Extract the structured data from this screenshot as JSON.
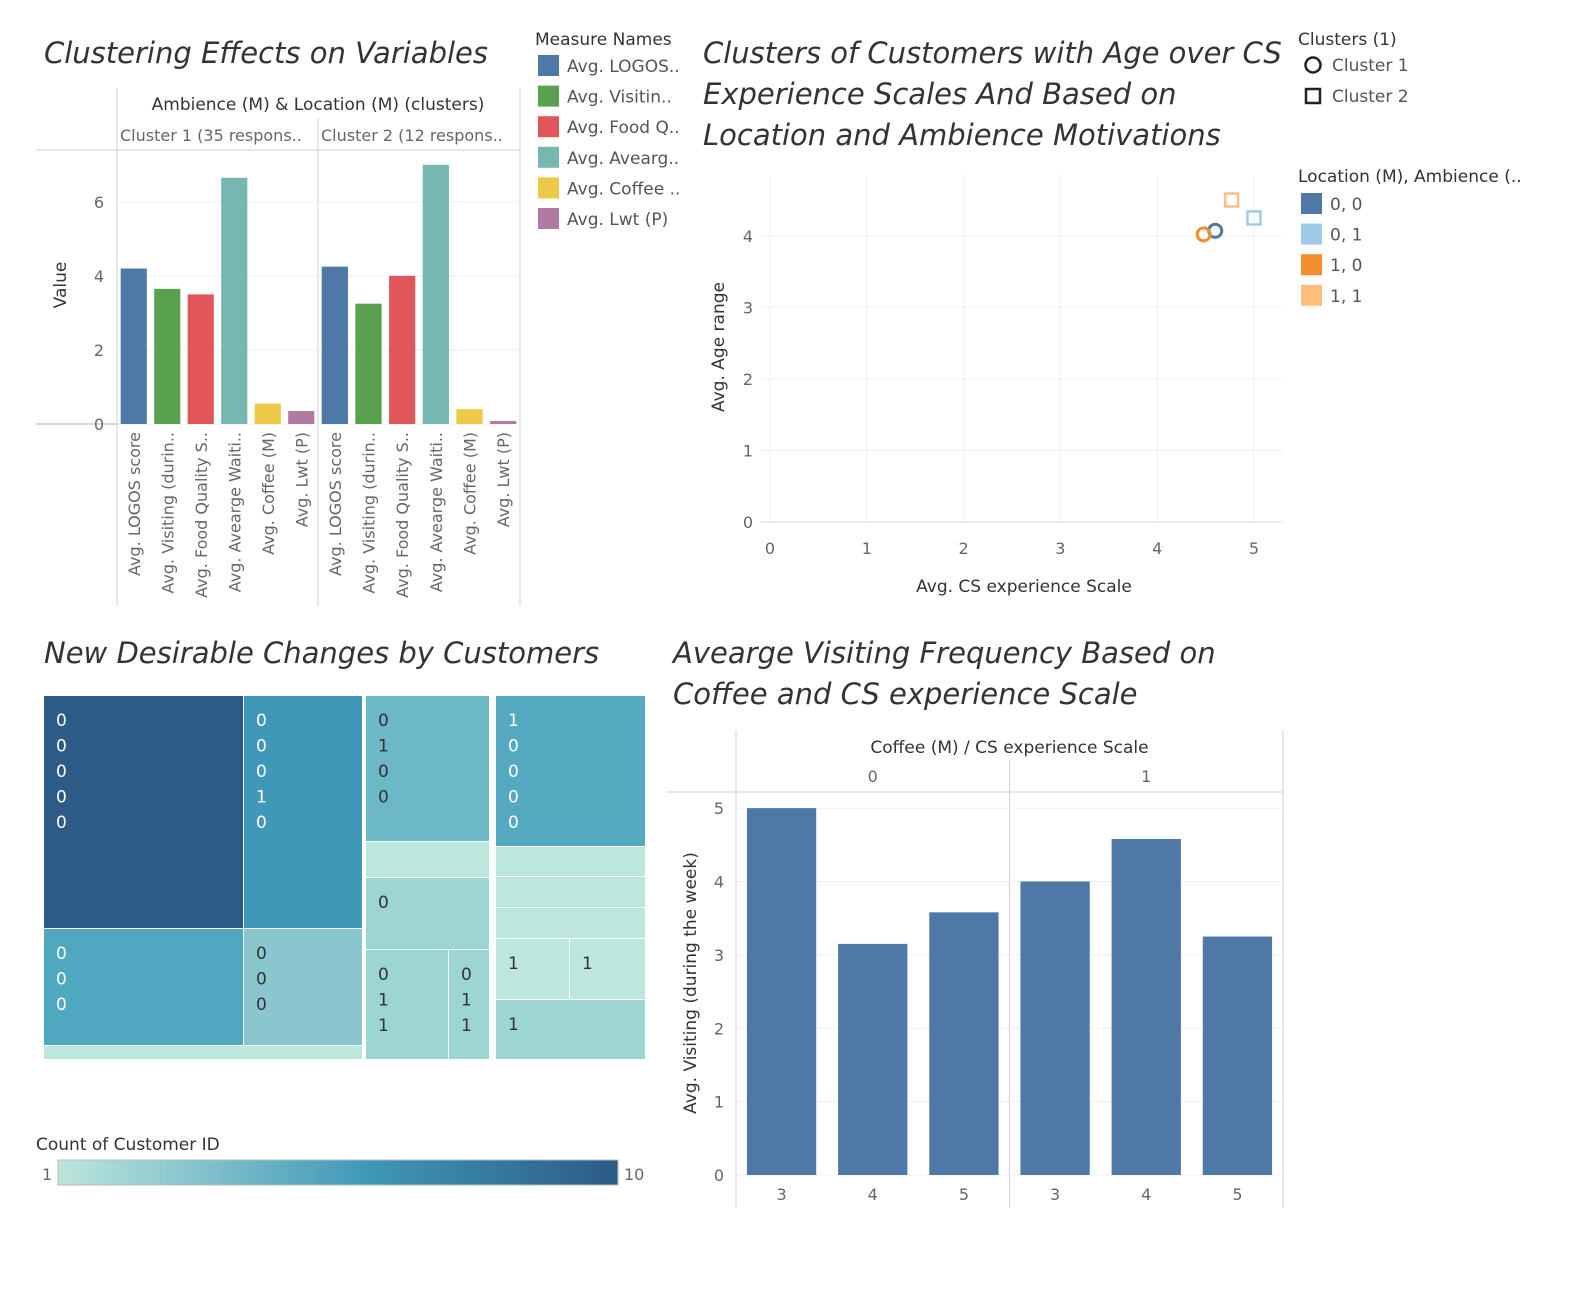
{
  "chart_data": [
    {
      "id": "clustering",
      "type": "bar",
      "title": "Clustering Effects on Variables",
      "header": "Ambience (M) & Location (M) (clusters)",
      "ylabel": "Value",
      "ylim": [
        0,
        7.4
      ],
      "yticks": [
        0,
        2,
        4,
        6
      ],
      "legend_title": "Measure Names",
      "legend": [
        "Avg. LOGOS..",
        "Avg. Visitin..",
        "Avg. Food Q..",
        "Avg. Avearg..",
        "Avg. Coffee ..",
        "Avg. Lwt (P)"
      ],
      "colors": [
        "#4e79a7",
        "#59a14f",
        "#e15759",
        "#76b7b2",
        "#edc948",
        "#b07aa1"
      ],
      "categories": [
        "Avg. LOGOS score",
        "Avg. Visiting (durin..",
        "Avg. Food Quality S..",
        "Avg. Avearge Waiti..",
        "Avg. Coffee (M)",
        "Avg. Lwt (P)"
      ],
      "series": [
        {
          "name": "Cluster 1 (35 respons..",
          "values": [
            4.2,
            3.65,
            3.5,
            6.65,
            0.55,
            0.35
          ]
        },
        {
          "name": "Cluster 2 (12 respons..",
          "values": [
            4.25,
            3.25,
            4.0,
            7.0,
            0.4,
            0.08
          ]
        }
      ],
      "grid": true
    },
    {
      "id": "scatter",
      "type": "scatter",
      "title_lines": [
        "Clusters of Customers with Age over CS",
        "Experience Scales And  Based on",
        "Location and Ambience Motivations"
      ],
      "xlabel": "Avg. CS experience Scale",
      "ylabel": "Avg. Age range",
      "xlim": [
        0,
        5.3
      ],
      "ylim": [
        0,
        4.85
      ],
      "xticks": [
        0,
        1,
        2,
        3,
        4,
        5
      ],
      "yticks": [
        0,
        1,
        2,
        3,
        4
      ],
      "shape_legend_title": "Clusters (1)",
      "shape_legend": [
        {
          "label": "Cluster 1",
          "shape": "circle"
        },
        {
          "label": "Cluster 2",
          "shape": "square"
        }
      ],
      "color_legend_title": "Location (M), Ambience (..",
      "color_legend": [
        {
          "label": "0, 0",
          "color": "#4e79a7"
        },
        {
          "label": "0, 1",
          "color": "#a0cbe8"
        },
        {
          "label": "1, 0",
          "color": "#f28e2b"
        },
        {
          "label": "1, 1",
          "color": "#ffbe7d"
        }
      ],
      "points": [
        {
          "x": 4.6,
          "y": 4.07,
          "shape": "circle",
          "color": "#4e79a7"
        },
        {
          "x": 4.48,
          "y": 4.02,
          "shape": "circle",
          "color": "#f28e2b"
        },
        {
          "x": 4.77,
          "y": 4.5,
          "shape": "square",
          "color": "#ffbe7d"
        },
        {
          "x": 5.0,
          "y": 4.25,
          "shape": "square",
          "color": "#a0cbe8"
        }
      ],
      "grid": true
    },
    {
      "id": "treemap",
      "type": "heatmap",
      "title": "New Desirable Changes by Customers",
      "color_legend_title": "Count of Customer ID",
      "color_min": "1",
      "color_max": "10",
      "cells": [
        {
          "lines": [
            "0",
            "0",
            "0",
            "0",
            "0"
          ],
          "count": 10,
          "color": "#2c5b88"
        },
        {
          "lines": [
            "0",
            "0",
            "0",
            "1",
            "0"
          ],
          "count": 6,
          "color": "#3f98b8"
        },
        {
          "lines": [
            "0",
            "0",
            "0"
          ],
          "count": 5,
          "color": "#4fa8c0"
        },
        {
          "lines": [
            "0",
            "0",
            "0"
          ],
          "count": 3,
          "color": "#8ac6ce"
        },
        {
          "lines": [],
          "count": 1,
          "color": "#bde6dc"
        },
        {
          "lines": [
            "0",
            "1",
            "0",
            "0"
          ],
          "count": 4,
          "color": "#6db8c6"
        },
        {
          "lines": [],
          "count": 1,
          "color": "#bde6dc"
        },
        {
          "lines": [
            "0"
          ],
          "count": 2,
          "color": "#9dd5d2"
        },
        {
          "lines": [
            "0",
            "1",
            "1"
          ],
          "count": 2,
          "color": "#9dd5d2"
        },
        {
          "lines": [
            "0",
            "1",
            "1"
          ],
          "count": 2,
          "color": "#9dd5d2"
        },
        {
          "lines": [
            "1",
            "0",
            "0",
            "0",
            "0"
          ],
          "count": 5,
          "color": "#54a9c1"
        },
        {
          "lines": [],
          "count": 1,
          "color": "#bde6dc"
        },
        {
          "lines": [],
          "count": 1,
          "color": "#bde6dc"
        },
        {
          "lines": [],
          "count": 1,
          "color": "#bde6dc"
        },
        {
          "lines": [
            "1"
          ],
          "count": 1,
          "color": "#bde6dc"
        },
        {
          "lines": [
            "1"
          ],
          "count": 1,
          "color": "#bde6dc"
        },
        {
          "lines": [
            "1"
          ],
          "count": 2,
          "color": "#9dd5d2"
        }
      ]
    },
    {
      "id": "visiting",
      "type": "bar",
      "title_lines": [
        "Avearge Visiting Frequency Based on",
        "Coffee and CS experience Scale"
      ],
      "header": "Coffee (M)  /  CS experience Scale",
      "ylabel": "Avg. Visiting (during the week)",
      "ylim": [
        0,
        5.22
      ],
      "yticks": [
        0,
        1,
        2,
        3,
        4,
        5
      ],
      "groups": [
        {
          "name": "0",
          "categories": [
            "3",
            "4",
            "5"
          ],
          "values": [
            5.0,
            3.15,
            3.58
          ]
        },
        {
          "name": "1",
          "categories": [
            "3",
            "4",
            "5"
          ],
          "values": [
            4.0,
            4.58,
            3.25
          ]
        }
      ],
      "color": "#4e79a7",
      "grid": true
    }
  ]
}
